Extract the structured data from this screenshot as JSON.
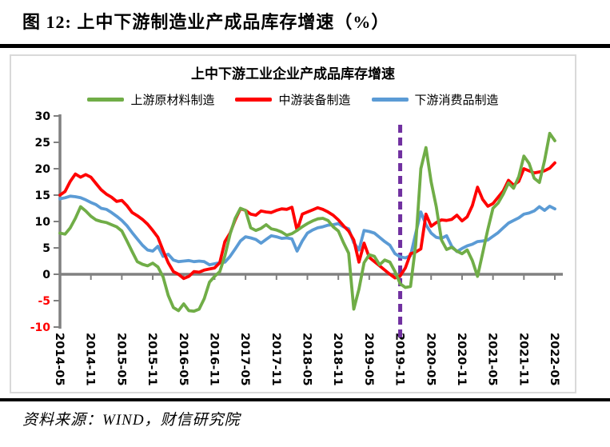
{
  "page": {
    "title": "图 12:  上中下游制造业产成品库存增速（%）",
    "source": "资料来源：WIND，财信研究院"
  },
  "chart_data": {
    "type": "line",
    "title": "上中下游工业企业产成品库存增速",
    "legend_position": "top",
    "grid": false,
    "x_unit": "month",
    "x_start": "2014-05",
    "x_end": "2022-05",
    "x_points": 97,
    "x_tick_labels": [
      "2014-05",
      "2014-11",
      "2015-05",
      "2015-11",
      "2016-05",
      "2016-11",
      "2017-05",
      "2017-11",
      "2018-05",
      "2018-11",
      "2019-05",
      "2019-11",
      "2020-05",
      "2020-11",
      "2021-05",
      "2021-11",
      "2022-05"
    ],
    "ylim": [
      -10,
      30
    ],
    "y_ticks": [
      30,
      25,
      20,
      15,
      10,
      5,
      0,
      -5,
      -10
    ],
    "axis_color": "#808080",
    "tick_label_color": "#000000",
    "negative_tick_color": "#ff0000",
    "vline": {
      "x": "2019-11",
      "x_index": 66,
      "color": "#7030a0",
      "style": "dashed"
    },
    "series": [
      {
        "name": "上游原材料制造",
        "color": "#70ad47",
        "values": [
          7.8,
          7.6,
          8.8,
          10.6,
          12.8,
          12.0,
          11.0,
          10.3,
          10.0,
          9.8,
          9.4,
          9.0,
          8.2,
          6.3,
          4.3,
          2.4,
          1.9,
          1.6,
          2.1,
          1.4,
          -0.5,
          -4.0,
          -6.3,
          -6.9,
          -5.6,
          -6.9,
          -7.0,
          -6.6,
          -4.6,
          -1.5,
          -0.4,
          0.5,
          3.5,
          7.6,
          10.6,
          12.5,
          12.1,
          8.8,
          8.3,
          8.7,
          9.4,
          8.6,
          8.4,
          8.0,
          7.4,
          7.7,
          8.3,
          9.0,
          9.6,
          10.1,
          10.5,
          10.6,
          10.2,
          9.0,
          8.2,
          6.0,
          4.0,
          -6.6,
          -2.8,
          2.2,
          3.7,
          3.4,
          1.8,
          2.7,
          2.3,
          0.5,
          -1.8,
          -2.5,
          -2.3,
          5.5,
          20.0,
          24.0,
          17.5,
          12.8,
          6.5,
          4.7,
          5.1,
          4.4,
          3.9,
          4.6,
          2.6,
          -0.4,
          4.0,
          8.5,
          12.5,
          13.5,
          15.2,
          17.3,
          16.3,
          18.5,
          22.4,
          21.0,
          18.2,
          17.4,
          21.5,
          26.7,
          25.3
        ]
      },
      {
        "name": "中游装备制造",
        "color": "#ff0000",
        "values": [
          15.0,
          15.7,
          17.6,
          19.0,
          18.4,
          18.9,
          18.4,
          17.2,
          16.0,
          15.2,
          14.6,
          13.8,
          14.0,
          13.0,
          11.7,
          11.1,
          10.4,
          9.5,
          8.3,
          7.0,
          4.5,
          2.2,
          0.5,
          0.0,
          -0.8,
          -0.4,
          0.5,
          0.4,
          0.8,
          1.0,
          1.2,
          2.2,
          6.2,
          7.8,
          10.3,
          12.4,
          12.1,
          11.4,
          11.2,
          12.0,
          11.8,
          11.7,
          12.1,
          12.4,
          12.3,
          12.7,
          8.3,
          11.4,
          11.8,
          12.2,
          12.6,
          12.3,
          11.8,
          11.2,
          10.3,
          9.2,
          8.2,
          6.5,
          2.3,
          5.9,
          3.2,
          2.4,
          1.6,
          0.8,
          0.0,
          -0.7,
          -0.3,
          1.2,
          3.9,
          4.2,
          4.8,
          11.4,
          9.1,
          9.8,
          10.3,
          10.2,
          10.4,
          11.2,
          10.1,
          10.9,
          13.0,
          16.5,
          14.2,
          12.9,
          13.4,
          14.6,
          15.8,
          17.8,
          16.9,
          17.6,
          20.0,
          19.6,
          19.2,
          19.4,
          19.6,
          20.1,
          21.1
        ]
      },
      {
        "name": "下游消费品制造",
        "color": "#5b9bd5",
        "values": [
          14.3,
          14.5,
          14.8,
          14.7,
          14.5,
          14.1,
          13.6,
          13.2,
          12.5,
          12.3,
          11.7,
          11.0,
          10.2,
          9.2,
          7.9,
          6.7,
          5.5,
          4.6,
          4.4,
          5.3,
          3.4,
          3.8,
          2.7,
          2.4,
          2.5,
          2.6,
          2.4,
          2.5,
          2.4,
          1.8,
          2.0,
          2.2,
          2.3,
          3.4,
          4.8,
          6.3,
          7.1,
          6.9,
          6.6,
          5.9,
          6.6,
          7.3,
          7.1,
          6.8,
          6.9,
          6.7,
          4.4,
          6.3,
          7.8,
          8.4,
          8.8,
          9.0,
          9.3,
          9.4,
          9.6,
          9.0,
          8.6,
          6.0,
          4.6,
          8.3,
          8.1,
          7.8,
          7.0,
          6.2,
          5.5,
          3.9,
          3.3,
          3.1,
          3.5,
          7.7,
          11.8,
          9.4,
          7.8,
          7.0,
          6.8,
          7.3,
          5.3,
          4.3,
          4.9,
          5.4,
          5.7,
          6.2,
          6.3,
          6.5,
          7.2,
          7.9,
          8.8,
          9.7,
          10.2,
          10.7,
          11.4,
          11.6,
          12.0,
          12.8,
          12.1,
          12.9,
          12.4
        ]
      }
    ]
  }
}
